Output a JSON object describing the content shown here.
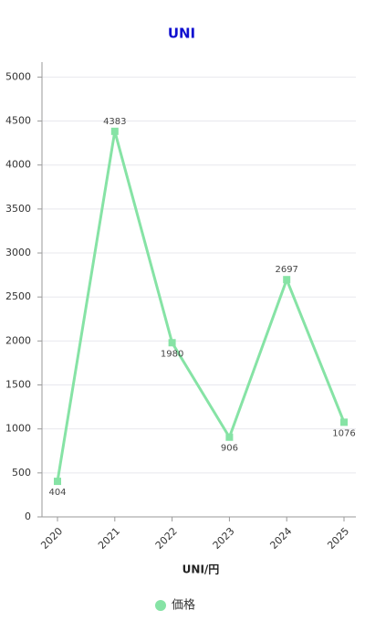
{
  "chart_data": {
    "type": "line",
    "title": "UNI",
    "x_label": "UNI/円",
    "categories": [
      "2020",
      "2021",
      "2022",
      "2023",
      "2024",
      "2025"
    ],
    "series": [
      {
        "name": "価格",
        "color": "#86e3a5",
        "values": [
          404,
          4383,
          1980,
          906,
          2697,
          1076
        ]
      }
    ],
    "ylim": [
      0,
      5170
    ],
    "yticks": [
      0,
      500,
      1000,
      1500,
      2000,
      2500,
      3000,
      3500,
      4000,
      4500,
      5000
    ],
    "grid": true,
    "legend": "bottom"
  }
}
